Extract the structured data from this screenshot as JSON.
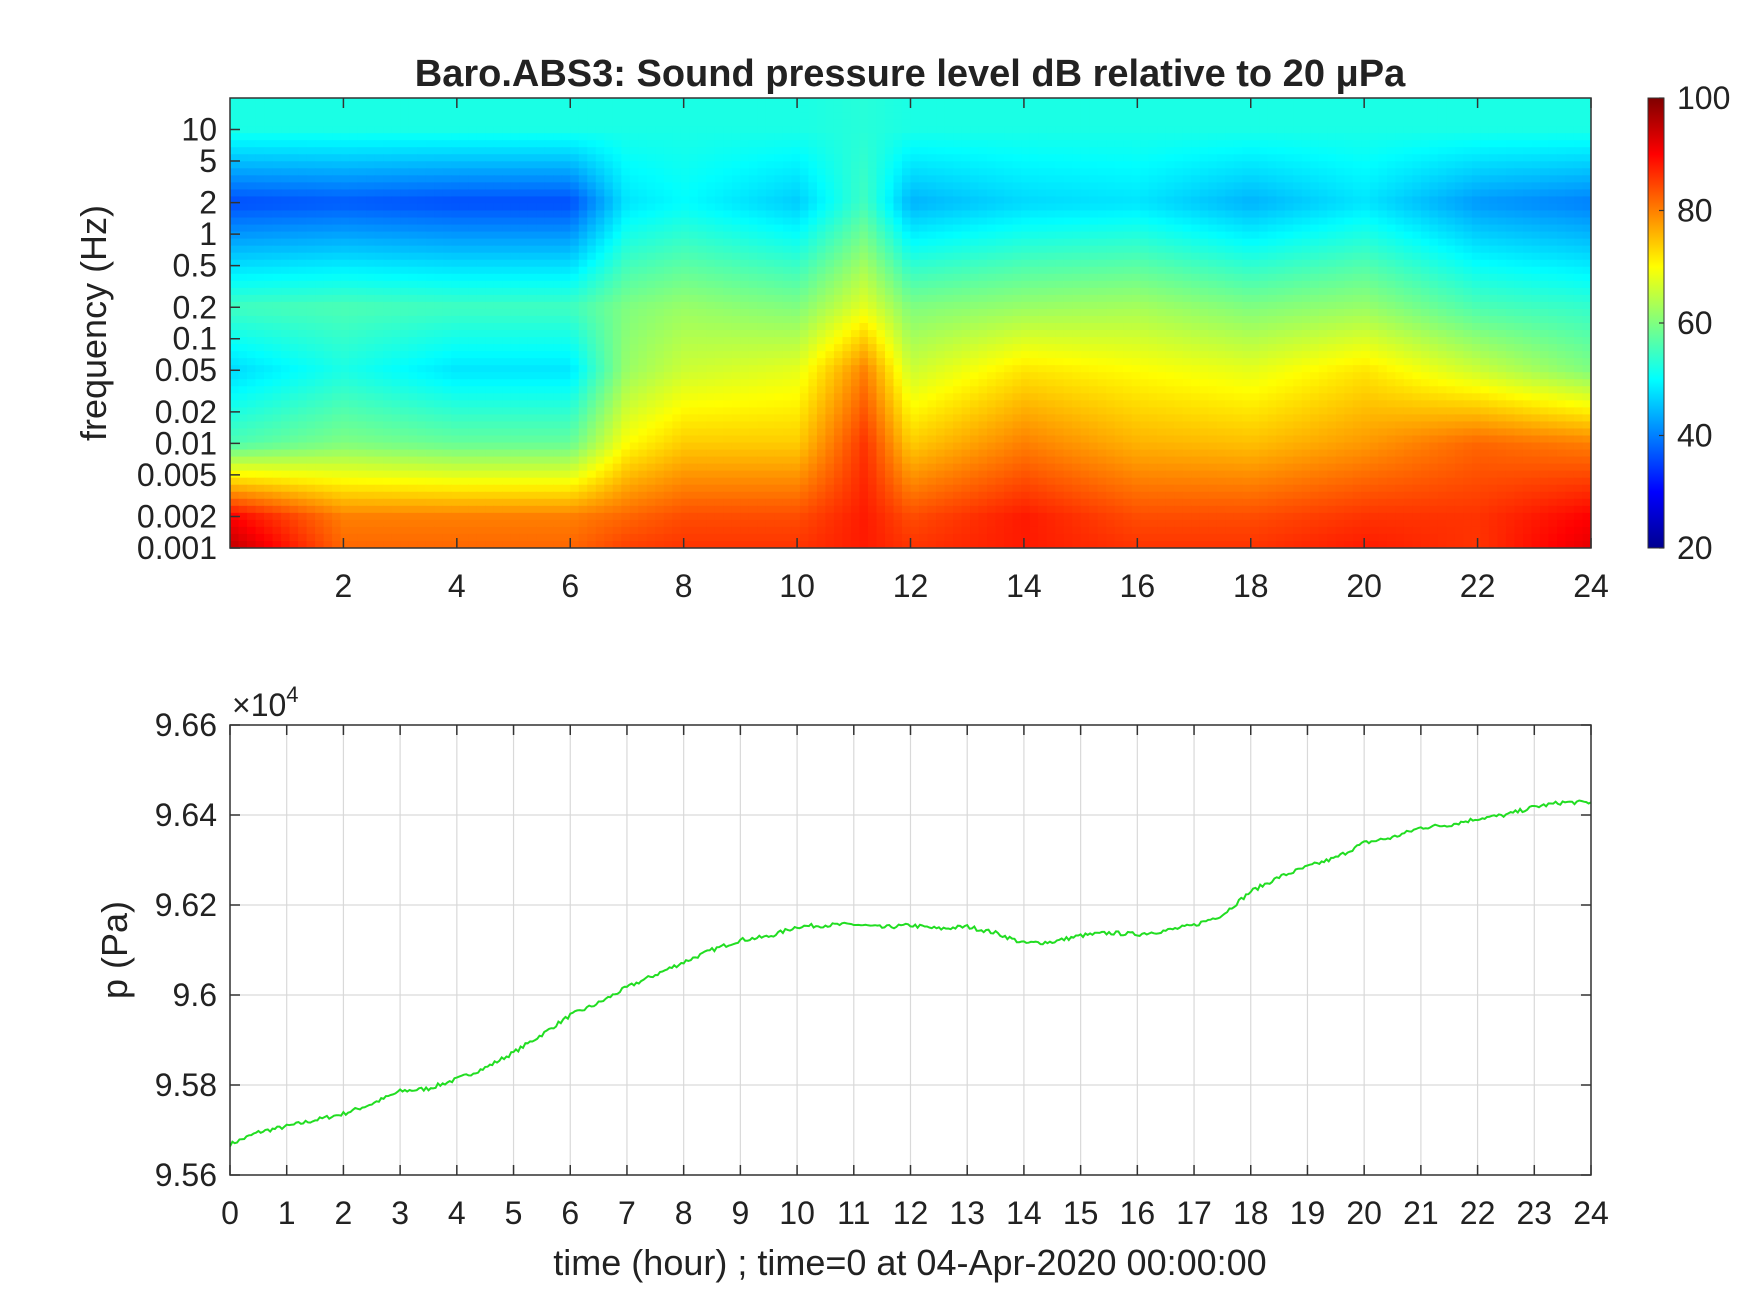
{
  "figure": {
    "title": "Baro.ABS3: Sound pressure level dB relative to 20 μPa"
  },
  "chart_data": [
    {
      "type": "heatmap",
      "title": "Baro.ABS3: Sound pressure level dB relative to 20 μPa",
      "xlabel": "",
      "ylabel": "frequency (Hz)",
      "xlim": [
        0,
        24
      ],
      "x_ticks": [
        "2",
        "4",
        "6",
        "8",
        "10",
        "12",
        "14",
        "16",
        "18",
        "20",
        "22",
        "24"
      ],
      "x_tick_values": [
        2,
        4,
        6,
        8,
        10,
        12,
        14,
        16,
        18,
        20,
        22,
        24
      ],
      "y_scale": "log",
      "ylim": [
        0.001,
        20
      ],
      "y_ticks": [
        "0.001",
        "0.002",
        "0.005",
        "0.01",
        "0.02",
        "0.05",
        "0.1",
        "0.2",
        "0.5",
        "1",
        "2",
        "5",
        "10"
      ],
      "y_tick_values": [
        0.001,
        0.002,
        0.005,
        0.01,
        0.02,
        0.05,
        0.1,
        0.2,
        0.5,
        1,
        2,
        5,
        10
      ],
      "colormap": "jet",
      "colorbar": {
        "range": [
          20,
          100
        ],
        "ticks": [
          "20",
          "40",
          "60",
          "80",
          "100"
        ],
        "tick_values": [
          20,
          40,
          60,
          80,
          100
        ]
      },
      "time_hours": [
        0,
        2,
        4,
        6,
        7,
        8,
        10,
        11.2,
        12,
        14,
        16,
        18,
        20,
        22,
        24
      ],
      "level_profiles": [
        {
          "freq_hz": 10,
          "level_db": [
            52,
            52,
            52,
            52,
            52,
            52,
            52,
            53,
            52,
            52,
            52,
            52,
            52,
            52,
            52
          ]
        },
        {
          "freq_hz": 2,
          "level_db": [
            36,
            37,
            36,
            36,
            48,
            50,
            46,
            55,
            44,
            47,
            48,
            44,
            48,
            42,
            40
          ]
        },
        {
          "freq_hz": 0.2,
          "level_db": [
            55,
            56,
            55,
            55,
            60,
            62,
            60,
            68,
            60,
            62,
            63,
            60,
            62,
            56,
            54
          ]
        },
        {
          "freq_hz": 0.05,
          "level_db": [
            47,
            52,
            48,
            48,
            62,
            66,
            68,
            80,
            66,
            72,
            70,
            68,
            72,
            66,
            60
          ]
        },
        {
          "freq_hz": 0.01,
          "level_db": [
            56,
            60,
            58,
            58,
            70,
            74,
            74,
            86,
            74,
            80,
            76,
            75,
            78,
            82,
            80
          ]
        },
        {
          "freq_hz": 0.002,
          "level_db": [
            90,
            80,
            80,
            80,
            82,
            84,
            84,
            88,
            84,
            88,
            84,
            84,
            86,
            86,
            90
          ]
        },
        {
          "freq_hz": 0.001,
          "level_db": [
            95,
            82,
            82,
            82,
            85,
            86,
            86,
            88,
            86,
            88,
            86,
            86,
            88,
            86,
            92
          ]
        }
      ],
      "notes": []
    },
    {
      "type": "line",
      "title": "",
      "xlabel": "time (hour) ; time=0 at 04-Apr-2020 00:00:00",
      "ylabel": "p (Pa)",
      "y_multiplier_label": "×10",
      "y_multiplier_exponent": "4",
      "xlim": [
        0,
        24
      ],
      "ylim": [
        9.56,
        9.66
      ],
      "x_ticks": [
        "0",
        "1",
        "2",
        "3",
        "4",
        "5",
        "6",
        "7",
        "8",
        "9",
        "10",
        "11",
        "12",
        "13",
        "14",
        "15",
        "16",
        "17",
        "18",
        "19",
        "20",
        "21",
        "22",
        "23",
        "24"
      ],
      "x_tick_values": [
        0,
        1,
        2,
        3,
        4,
        5,
        6,
        7,
        8,
        9,
        10,
        11,
        12,
        13,
        14,
        15,
        16,
        17,
        18,
        19,
        20,
        21,
        22,
        23,
        24
      ],
      "y_ticks": [
        "9.56",
        "9.58",
        "9.6",
        "9.62",
        "9.64",
        "9.66"
      ],
      "y_tick_values": [
        9.56,
        9.58,
        9.6,
        9.62,
        9.64,
        9.66
      ],
      "grid": true,
      "series": [
        {
          "color": "#22dd22",
          "x": [
            0,
            0.5,
            1,
            1.5,
            2,
            2.5,
            3,
            3.5,
            4,
            4.5,
            5,
            5.5,
            6,
            6.5,
            7,
            7.5,
            8,
            8.5,
            9,
            9.5,
            10,
            10.5,
            11,
            11.5,
            12,
            12.5,
            13,
            13.5,
            14,
            14.5,
            15,
            15.5,
            16,
            16.5,
            17,
            17.5,
            18,
            18.5,
            19,
            19.5,
            20,
            20.5,
            21,
            21.5,
            22,
            22.5,
            23,
            23.5,
            24
          ],
          "y": [
            9.5668,
            9.5695,
            9.5708,
            9.5722,
            9.5736,
            9.5758,
            9.5786,
            9.5792,
            9.5813,
            9.5838,
            9.5872,
            9.5912,
            9.5955,
            9.5982,
            9.6017,
            9.6045,
            9.6073,
            9.61,
            9.6122,
            9.613,
            9.6152,
            9.6155,
            9.6157,
            9.615,
            9.6155,
            9.6147,
            9.6152,
            9.6138,
            9.6115,
            9.6118,
            9.6132,
            9.6138,
            9.6135,
            9.6143,
            9.6155,
            9.6178,
            9.623,
            9.6262,
            9.6285,
            9.6305,
            9.6338,
            9.635,
            9.6372,
            9.6378,
            9.6392,
            9.64,
            9.6418,
            9.6428,
            9.6428
          ]
        }
      ]
    }
  ]
}
